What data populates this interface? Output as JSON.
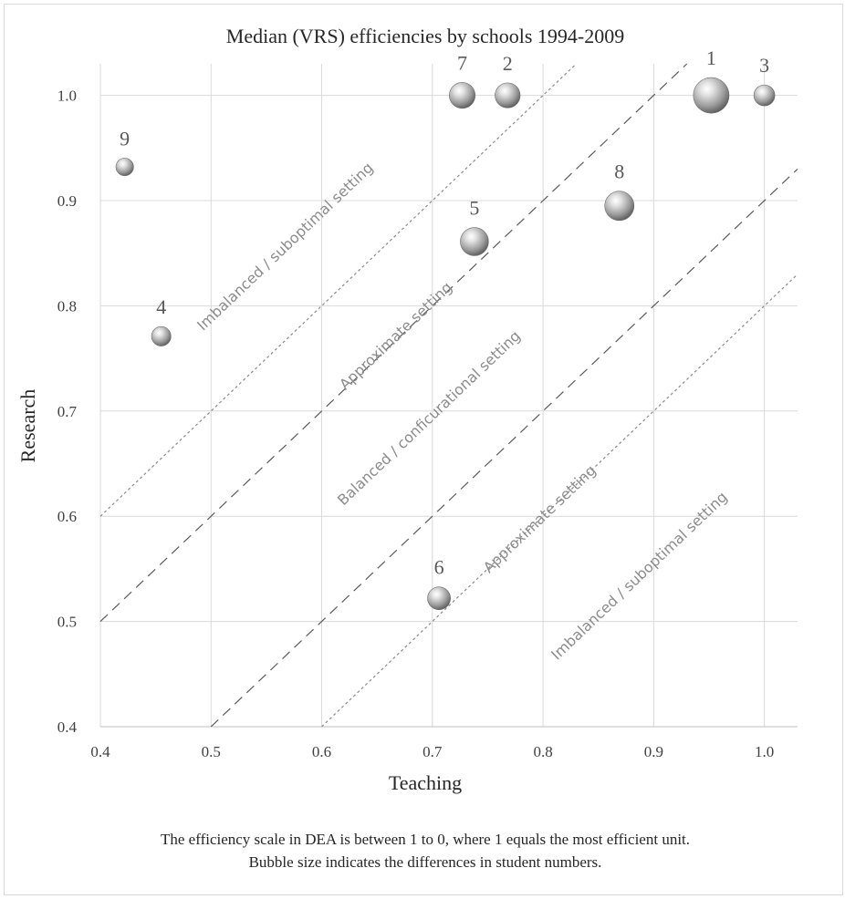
{
  "chart_data": {
    "type": "scatter",
    "title": "Median (VRS) efficiencies  by schools 1994-2009",
    "xlabel": "Teaching",
    "ylabel": "Research",
    "xlim": [
      0.4,
      1.03
    ],
    "ylim": [
      0.4,
      1.03
    ],
    "x_ticks": [
      "0.4",
      "0.5",
      "0.6",
      "0.7",
      "0.8",
      "0.9",
      "1.0"
    ],
    "y_ticks": [
      "0.4",
      "0.5",
      "0.6",
      "0.7",
      "0.8",
      "0.9",
      "1.0"
    ],
    "grid": true,
    "bubbles": [
      {
        "label": "1",
        "x": 0.952,
        "y": 1.0,
        "size": 3.0
      },
      {
        "label": "2",
        "x": 0.768,
        "y": 1.0,
        "size": 1.45
      },
      {
        "label": "3",
        "x": 1.0,
        "y": 1.0,
        "size": 1.0
      },
      {
        "label": "4",
        "x": 0.455,
        "y": 0.771,
        "size": 0.85
      },
      {
        "label": "5",
        "x": 0.738,
        "y": 0.861,
        "size": 1.85
      },
      {
        "label": "6",
        "x": 0.706,
        "y": 0.522,
        "size": 1.2
      },
      {
        "label": "7",
        "x": 0.727,
        "y": 1.0,
        "size": 1.55
      },
      {
        "label": "8",
        "x": 0.869,
        "y": 0.895,
        "size": 2.0
      },
      {
        "label": "9",
        "x": 0.422,
        "y": 0.932,
        "size": 0.7
      }
    ],
    "reference_lines": [
      {
        "offset": 0.2,
        "style": "dotted"
      },
      {
        "offset": 0.1,
        "style": "dashed"
      },
      {
        "offset": -0.1,
        "style": "dashed"
      },
      {
        "offset": -0.2,
        "style": "dotted"
      }
    ],
    "zone_labels": [
      {
        "text": "Imbalanced  /  suboptimal setting",
        "x": 0.57,
        "y": 0.853
      },
      {
        "text": "Approximate setting",
        "x": 0.67,
        "y": 0.768
      },
      {
        "text": "Balanced  /  conficurational setting",
        "x": 0.7,
        "y": 0.69
      },
      {
        "text": "Approximate setting",
        "x": 0.8,
        "y": 0.594
      },
      {
        "text": "Imbalanced  /  suboptimal setting",
        "x": 0.89,
        "y": 0.54
      }
    ],
    "note_lines": [
      "The efficiency  scale  in  DEA  is  between  1  to  0,  where  1  equals  the  most  efficient  unit.",
      "Bubble  size  indicates  the  differences  in  student  numbers."
    ]
  }
}
